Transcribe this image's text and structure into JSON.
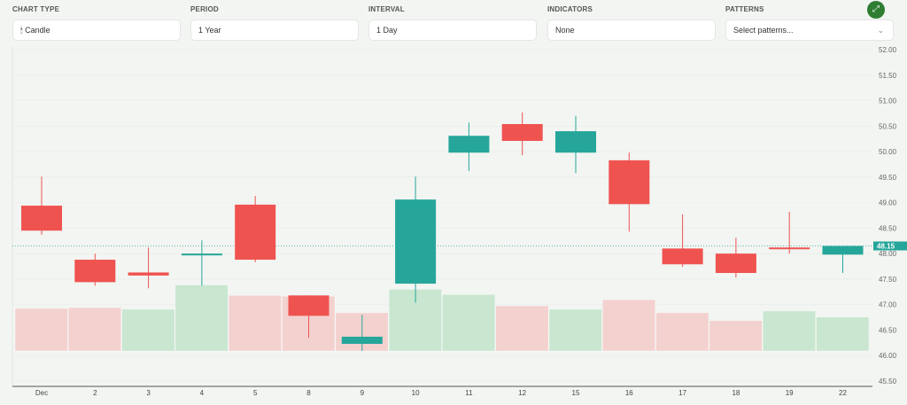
{
  "controls": {
    "chart_type": {
      "label": "CHART TYPE",
      "value": "Candle",
      "icon": "candle-icon"
    },
    "period": {
      "label": "PERIOD",
      "value": "1 Year"
    },
    "interval": {
      "label": "INTERVAL",
      "value": "1 Day"
    },
    "indicators": {
      "label": "INDICATORS",
      "value": "None"
    },
    "patterns": {
      "label": "PATTERNS",
      "placeholder": "Select patterns..."
    },
    "expand_icon": "expand-arrows-icon"
  },
  "colors": {
    "up": "#26a69a",
    "down": "#ef5350",
    "up_volume": "#c8e6d0",
    "down_volume": "#f3d1cf",
    "accent": "#2e7d32"
  },
  "chart_data": {
    "type": "candlestick",
    "categories": [
      "Dec",
      "2",
      "3",
      "4",
      "5",
      "8",
      "9",
      "10",
      "11",
      "12",
      "15",
      "16",
      "17",
      "18",
      "19",
      "22"
    ],
    "open": [
      48.94,
      47.88,
      47.63,
      48.0,
      48.96,
      47.18,
      46.23,
      47.41,
      49.98,
      50.54,
      49.98,
      49.83,
      48.1,
      48.0,
      48.12,
      47.98
    ],
    "high": [
      49.51,
      48.0,
      48.12,
      48.26,
      49.13,
      47.18,
      46.8,
      49.51,
      50.57,
      50.77,
      50.7,
      49.98,
      48.77,
      48.31,
      48.82,
      48.15
    ],
    "low": [
      48.37,
      47.37,
      47.32,
      47.37,
      47.83,
      46.35,
      46.09,
      47.04,
      49.62,
      49.93,
      49.58,
      48.43,
      47.74,
      47.53,
      48.0,
      47.62
    ],
    "close": [
      48.45,
      47.44,
      47.57,
      48.0,
      47.88,
      46.78,
      46.37,
      49.06,
      50.31,
      50.21,
      50.4,
      48.97,
      47.79,
      47.62,
      48.09,
      48.15
    ],
    "volume_relative": [
      49,
      50,
      48,
      76,
      64,
      63,
      44,
      71,
      65,
      52,
      48,
      59,
      44,
      35,
      46,
      39
    ],
    "volume_direction": [
      "down",
      "down",
      "up",
      "up",
      "down",
      "down",
      "down",
      "up",
      "up",
      "down",
      "up",
      "down",
      "down",
      "down",
      "up",
      "up"
    ],
    "y_ticks": [
      "52.00",
      "51.50",
      "51.00",
      "50.50",
      "50.00",
      "49.50",
      "49.00",
      "48.50",
      "48.00",
      "47.50",
      "47.00",
      "46.50",
      "46.00",
      "45.50"
    ],
    "ylim": [
      45.5,
      52.0
    ],
    "last_price": "48.15",
    "grid": true
  }
}
